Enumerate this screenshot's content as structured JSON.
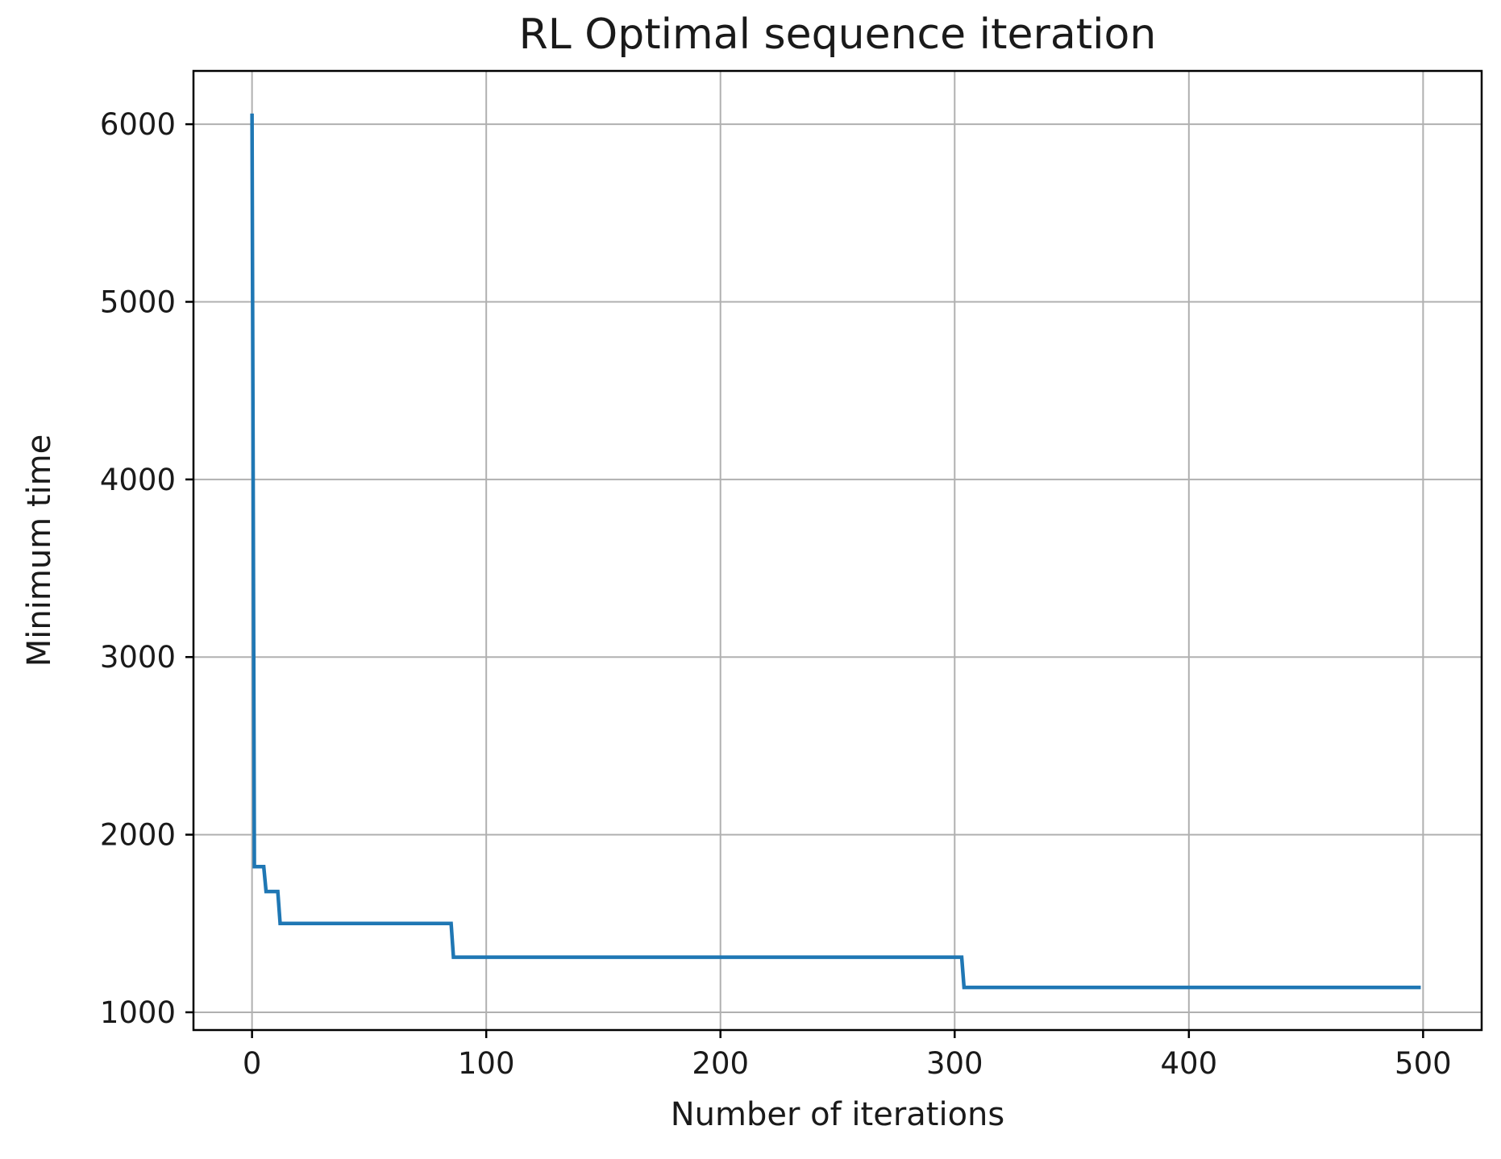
{
  "chart_data": {
    "type": "line",
    "title": "RL Optimal sequence iteration",
    "xlabel": "Number of iterations",
    "ylabel": "Minimum time",
    "xlim": [
      -25,
      525
    ],
    "ylim": [
      900,
      6300
    ],
    "xticks": [
      0,
      100,
      200,
      300,
      400,
      500
    ],
    "yticks": [
      1000,
      2000,
      3000,
      4000,
      5000,
      6000
    ],
    "grid": true,
    "colors": {
      "line": "#1f77b4",
      "grid": "#b0b0b0",
      "frame": "#000000"
    },
    "series": [
      {
        "x": [
          0,
          1,
          2,
          5,
          6,
          11,
          12,
          85,
          86,
          303,
          304,
          499
        ],
        "y": [
          6060,
          1820,
          1820,
          1820,
          1680,
          1680,
          1500,
          1500,
          1310,
          1310,
          1140,
          1140
        ]
      }
    ]
  }
}
